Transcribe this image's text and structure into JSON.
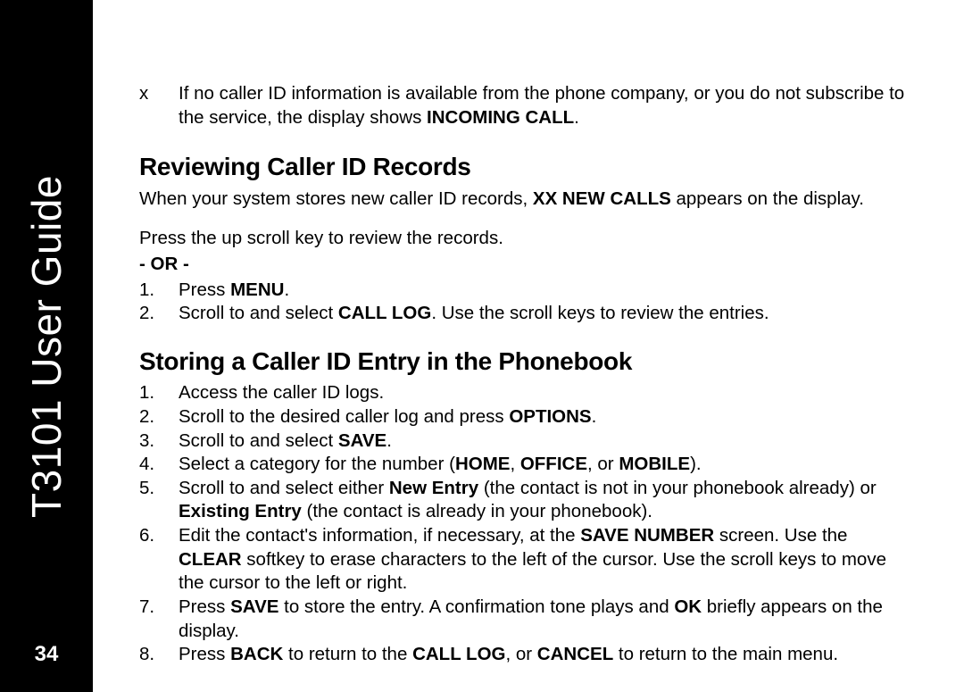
{
  "sidebar": {
    "title": "T3101 User Guide",
    "page_number": "34"
  },
  "intro_bullet": {
    "marker": "x",
    "text_pre": "If no caller ID information is available from the phone company, or you do not subscribe to the service, the display shows ",
    "text_bold": "INCOMING CALL",
    "text_post": "."
  },
  "section1": {
    "heading": "Reviewing Caller ID Records",
    "para1_pre": "When your system stores new caller ID records, ",
    "para1_bold": "XX NEW CALLS",
    "para1_post": " appears on the display.",
    "para2": "Press the up scroll key to review the records.",
    "or": "- OR -",
    "items": [
      {
        "n": "1.",
        "pre": "Press ",
        "b1": "MENU",
        "post": "."
      },
      {
        "n": "2.",
        "pre": "Scroll to and select ",
        "b1": "CALL LOG",
        "post": ". Use the scroll keys to review the entries."
      }
    ]
  },
  "section2": {
    "heading": "Storing a Caller ID Entry in the Phonebook",
    "items": [
      {
        "n": "1.",
        "segments": [
          {
            "t": "Access the caller ID logs."
          }
        ]
      },
      {
        "n": "2.",
        "segments": [
          {
            "t": "Scroll to the desired caller log and press "
          },
          {
            "b": "OPTIONS"
          },
          {
            "t": "."
          }
        ]
      },
      {
        "n": "3.",
        "segments": [
          {
            "t": "Scroll to and select "
          },
          {
            "b": "SAVE"
          },
          {
            "t": "."
          }
        ]
      },
      {
        "n": "4.",
        "segments": [
          {
            "t": "Select a category for the number ("
          },
          {
            "b": "HOME"
          },
          {
            "t": ", "
          },
          {
            "b": "OFFICE"
          },
          {
            "t": ", or "
          },
          {
            "b": "MOBILE"
          },
          {
            "t": ")."
          }
        ]
      },
      {
        "n": "5.",
        "segments": [
          {
            "t": "Scroll to and select either "
          },
          {
            "b": "New Entry"
          },
          {
            "t": " (the contact is not in your phonebook already) or "
          },
          {
            "b": "Existing Entry"
          },
          {
            "t": " (the contact is already in your phonebook)."
          }
        ]
      },
      {
        "n": "6.",
        "segments": [
          {
            "t": "Edit the contact's information, if necessary, at the "
          },
          {
            "b": "SAVE NUMBER"
          },
          {
            "t": " screen. Use the "
          },
          {
            "b": "CLEAR"
          },
          {
            "t": " softkey to erase characters to the left of the cursor. Use the scroll keys to move the cursor to the left or right."
          }
        ]
      },
      {
        "n": "7.",
        "segments": [
          {
            "t": "Press "
          },
          {
            "b": "SAVE"
          },
          {
            "t": " to store the entry. A confirmation tone plays and "
          },
          {
            "b": "OK"
          },
          {
            "t": " briefly appears on the display."
          }
        ]
      },
      {
        "n": "8.",
        "segments": [
          {
            "t": "Press "
          },
          {
            "b": "BACK"
          },
          {
            "t": " to return to the "
          },
          {
            "b": "CALL LOG"
          },
          {
            "t": ", or "
          },
          {
            "b": "CANCEL"
          },
          {
            "t": " to return to the main menu."
          }
        ]
      }
    ]
  }
}
